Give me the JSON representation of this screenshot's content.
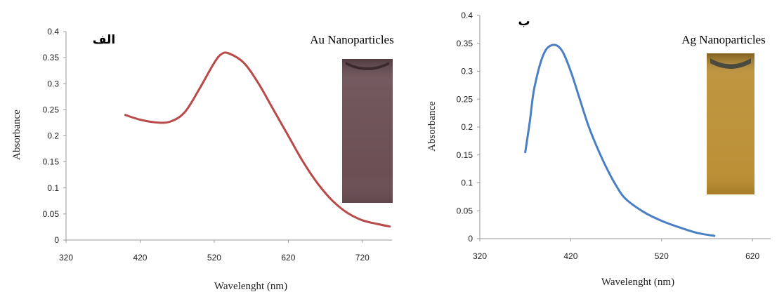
{
  "chart_data": [
    {
      "type": "line",
      "panel_label": "الف",
      "xlabel": "Wavelenght (nm)",
      "ylabel": "Absorbance",
      "xlim": [
        320,
        760
      ],
      "ylim": [
        0,
        0.4
      ],
      "x_ticks": [
        "320",
        "420",
        "520",
        "620",
        "720"
      ],
      "y_ticks": [
        "0",
        "0.05",
        "0.1",
        "0.15",
        "0.2",
        "0.25",
        "0.3",
        "0.35",
        "0.4"
      ],
      "grid": false,
      "inset_label": "Au Nanoparticles",
      "inset_color": "#6b4f55",
      "series": [
        {
          "color": "#b84a4a",
          "x": [
            400,
            420,
            440,
            460,
            480,
            500,
            520,
            530,
            540,
            560,
            580,
            600,
            620,
            640,
            660,
            680,
            700,
            720,
            740,
            757
          ],
          "y": [
            0.24,
            0.231,
            0.226,
            0.227,
            0.245,
            0.29,
            0.34,
            0.357,
            0.358,
            0.34,
            0.3,
            0.25,
            0.2,
            0.15,
            0.108,
            0.075,
            0.052,
            0.038,
            0.031,
            0.026
          ]
        }
      ]
    },
    {
      "type": "line",
      "panel_label": "ب",
      "xlabel": "Wavelenght (nm)",
      "ylabel": "Absorbance",
      "xlim": [
        320,
        640
      ],
      "ylim": [
        0,
        0.4
      ],
      "x_ticks": [
        "320",
        "420",
        "520",
        "620"
      ],
      "y_ticks": [
        "0",
        "0.05",
        "0.1",
        "0.15",
        "0.2",
        "0.25",
        "0.3",
        "0.35",
        "0.4"
      ],
      "grid": false,
      "inset_label": "Ag Nanoparticles",
      "inset_color": "#b88a2c",
      "series": [
        {
          "color": "#4a7fc4",
          "x": [
            370,
            375,
            380,
            390,
            400,
            410,
            420,
            430,
            440,
            450,
            460,
            470,
            480,
            500,
            520,
            540,
            560,
            578
          ],
          "y": [
            0.155,
            0.21,
            0.27,
            0.33,
            0.347,
            0.338,
            0.3,
            0.25,
            0.2,
            0.16,
            0.125,
            0.095,
            0.072,
            0.048,
            0.032,
            0.02,
            0.01,
            0.005
          ]
        }
      ]
    }
  ]
}
